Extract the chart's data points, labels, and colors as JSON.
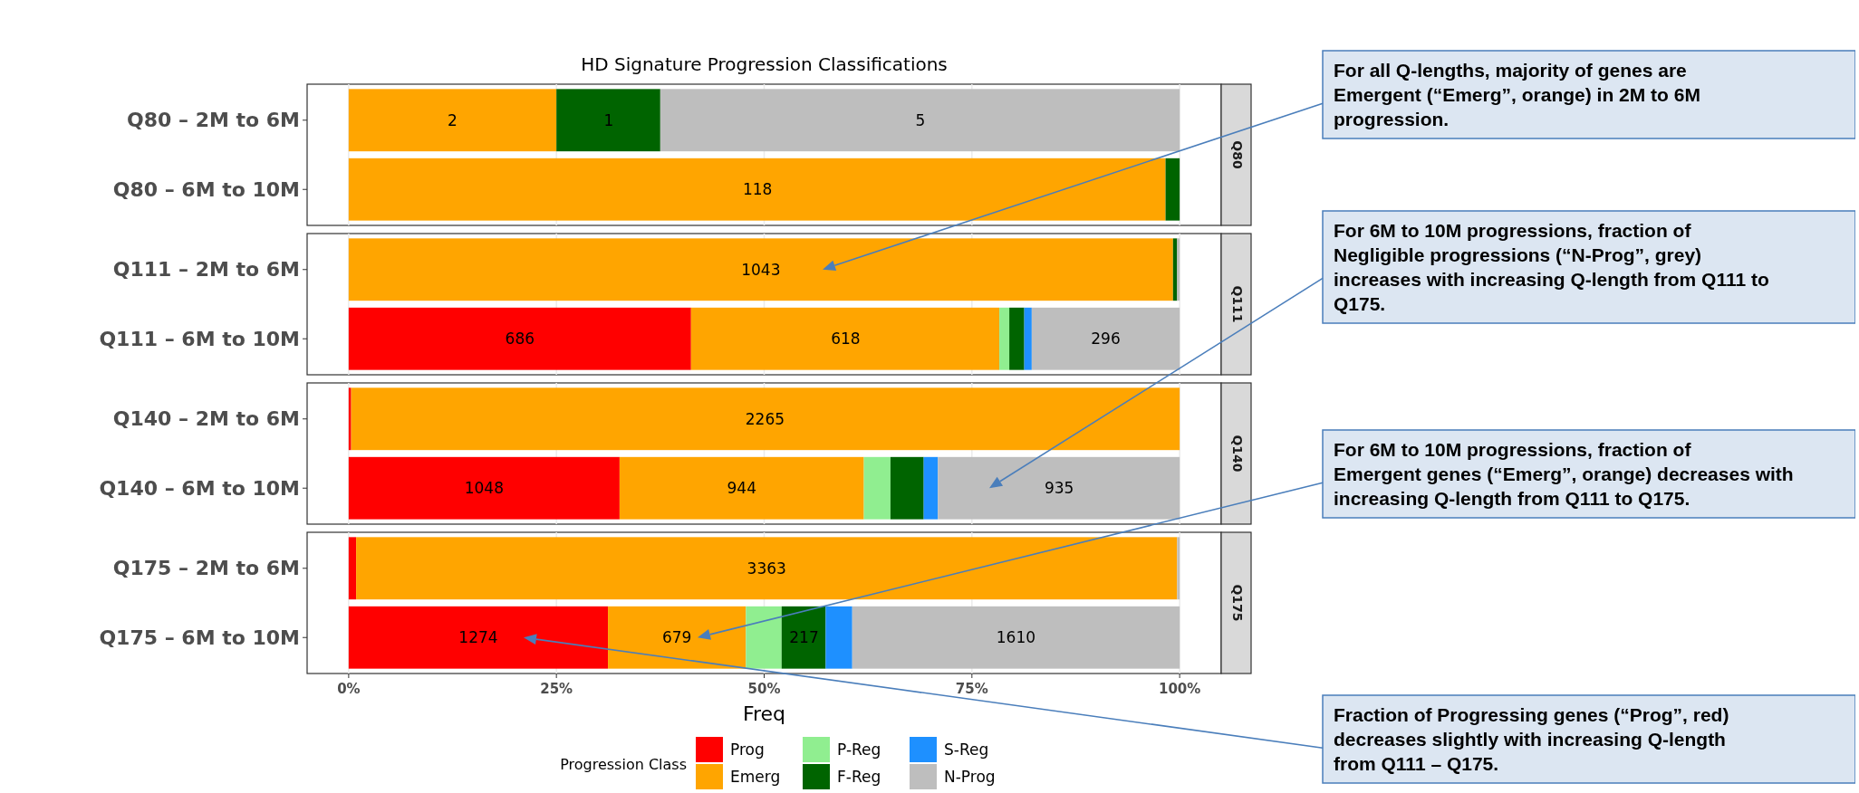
{
  "chart_data": [
    {
      "type": "bar",
      "orientation": "horizontal",
      "stacked": true,
      "subtitle": "HD Signature Progression Classifications",
      "y2label": "Q80",
      "categories": [
        "Q80 – 2M to 6M",
        "Q80 – 6M to 10M"
      ],
      "xlim": [
        -5,
        105
      ],
      "xticks": [
        {
          "value": 0,
          "label": null
        },
        {
          "value": 25,
          "label": null
        },
        {
          "value": 50,
          "label": null
        },
        {
          "value": 75,
          "label": null
        },
        {
          "value": 100,
          "label": null
        }
      ],
      "grid": "x",
      "tick_labels": "y",
      "annotations": [
        "For all Q-lengths, majority of genes are Emergent (“Emerg”, orange) in 2M to 6M progression.",
        "For 6M to 10M progressions, fraction of Negligible progressions (“N-Prog”, grey) increases with increasing Q-length from Q111 to Q175.",
        "For 6M to 10M progressions, fraction of Emergent genes (“Emerg”, orange) decreases with increasing Q-length from Q111 to Q175.",
        "Fraction of Progressing genes (“Prog”, red) decreases slightly with increasing Q-length from Q111 – Q175.",
        {
          "text": "2",
          "x": 12.5,
          "y": "Q80 – 2M to 6M"
        },
        {
          "text": "1",
          "x": 31.3,
          "y": "Q80 – 2M to 6M"
        },
        {
          "text": "5",
          "x": 68.8,
          "y": "Q80 – 2M to 6M"
        },
        {
          "text": "118",
          "x": 49.2,
          "y": "Q80 – 6M to 10M"
        }
      ],
      "series": [
        {
          "color": "#ffa500",
          "values": [
            25,
            98.3
          ]
        },
        {
          "color": "#006400",
          "values": [
            12.5,
            1.7
          ]
        },
        {
          "color": "#bebebe",
          "values": [
            62.5,
            null
          ]
        }
      ]
    },
    {
      "type": "bar",
      "orientation": "horizontal",
      "stacked": true,
      "y2label": "Q111",
      "categories": [
        "Q111 – 2M to 6M",
        "Q111 – 6M to 10M"
      ],
      "xlim": [
        -5,
        105
      ],
      "xticks": [
        {
          "value": 0,
          "label": null
        },
        {
          "value": 25,
          "label": null
        },
        {
          "value": 50,
          "label": null
        },
        {
          "value": 75,
          "label": null
        },
        {
          "value": 100,
          "label": null
        }
      ],
      "grid": "x",
      "tick_labels": "y",
      "annotations": [
        {
          "text": "1043",
          "x": 49.6,
          "y": "Q111 – 2M to 6M"
        },
        {
          "text": "686",
          "x": 20.6,
          "y": "Q111 – 6M to 10M"
        },
        {
          "text": "618",
          "x": 59.8,
          "y": "Q111 – 6M to 10M"
        },
        {
          "text": "296",
          "x": 91.1,
          "y": "Q111 – 6M to 10M"
        }
      ],
      "series": [
        {
          "color": "#ff0000",
          "values": [
            null,
            41.2
          ]
        },
        {
          "color": "#ffa500",
          "values": [
            99.2,
            37.1
          ]
        },
        {
          "color": "#90ee90",
          "values": [
            null,
            1.2
          ]
        },
        {
          "color": "#006400",
          "values": [
            0.5,
            1.8
          ]
        },
        {
          "color": "#1e90ff",
          "values": [
            null,
            0.9
          ]
        },
        {
          "color": "#bebebe",
          "values": [
            0.3,
            17.8
          ]
        }
      ]
    },
    {
      "type": "bar",
      "orientation": "horizontal",
      "stacked": true,
      "y2label": "Q140",
      "categories": [
        "Q140 – 2M to 6M",
        "Q140 – 6M to 10M"
      ],
      "xlim": [
        -5,
        105
      ],
      "xticks": [
        {
          "value": 0,
          "label": null
        },
        {
          "value": 25,
          "label": null
        },
        {
          "value": 50,
          "label": null
        },
        {
          "value": 75,
          "label": null
        },
        {
          "value": 100,
          "label": null
        }
      ],
      "grid": "x",
      "tick_labels": "y",
      "annotations": [
        {
          "text": "2265",
          "x": 50.1,
          "y": "Q140 – 2M to 6M"
        },
        {
          "text": "1048",
          "x": 16.3,
          "y": "Q140 – 6M to 10M"
        },
        {
          "text": "944",
          "x": 47.3,
          "y": "Q140 – 6M to 10M"
        },
        {
          "text": "935",
          "x": 85.5,
          "y": "Q140 – 6M to 10M"
        }
      ],
      "series": [
        {
          "color": "#ff0000",
          "values": [
            0.3,
            32.6
          ]
        },
        {
          "color": "#ffa500",
          "values": [
            99.7,
            29.4
          ]
        },
        {
          "color": "#90ee90",
          "values": [
            null,
            3.2
          ]
        },
        {
          "color": "#006400",
          "values": [
            null,
            4.0
          ]
        },
        {
          "color": "#1e90ff",
          "values": [
            null,
            1.7
          ]
        },
        {
          "color": "#bebebe",
          "values": [
            null,
            29.1
          ]
        }
      ]
    },
    {
      "type": "bar",
      "orientation": "horizontal",
      "stacked": true,
      "y2label": "Q175",
      "categories": [
        "Q175 – 2M to 6M",
        "Q175 – 6M to 10M"
      ],
      "xlim": [
        -5,
        105
      ],
      "xticks": [
        {
          "value": 0,
          "label": "0%"
        },
        {
          "value": 25,
          "label": "25%"
        },
        {
          "value": 50,
          "label": "50%"
        },
        {
          "value": 75,
          "label": "75%"
        },
        {
          "value": 100,
          "label": "100%"
        }
      ],
      "grid": "x",
      "xlabel": "Freq",
      "legend": "bottom",
      "legend_title": "Progression Class",
      "annotations": [
        {
          "text": "3363",
          "x": 50.3,
          "y": "Q175 – 2M to 6M"
        },
        {
          "text": "1274",
          "x": 15.6,
          "y": "Q175 – 6M to 10M"
        },
        {
          "text": "679",
          "x": 39.5,
          "y": "Q175 – 6M to 10M"
        },
        {
          "text": "217",
          "x": 54.8,
          "y": "Q175 – 6M to 10M"
        },
        {
          "text": "1610",
          "x": 80.3,
          "y": "Q175 – 6M to 10M"
        }
      ],
      "series": [
        {
          "name": "Prog",
          "color": "#ff0000",
          "values": [
            0.9,
            31.2
          ]
        },
        {
          "name": "Emerg",
          "color": "#ffa500",
          "values": [
            98.8,
            16.6
          ]
        },
        {
          "name": "P-Reg",
          "color": "#90ee90",
          "values": [
            null,
            4.3
          ]
        },
        {
          "name": "F-Reg",
          "color": "#006400",
          "values": [
            null,
            5.3
          ]
        },
        {
          "name": "S-Reg",
          "color": "#1e90ff",
          "values": [
            null,
            3.2
          ]
        },
        {
          "name": "N-Prog",
          "color": "#bebebe",
          "values": [
            0.3,
            39.4
          ]
        }
      ]
    }
  ]
}
